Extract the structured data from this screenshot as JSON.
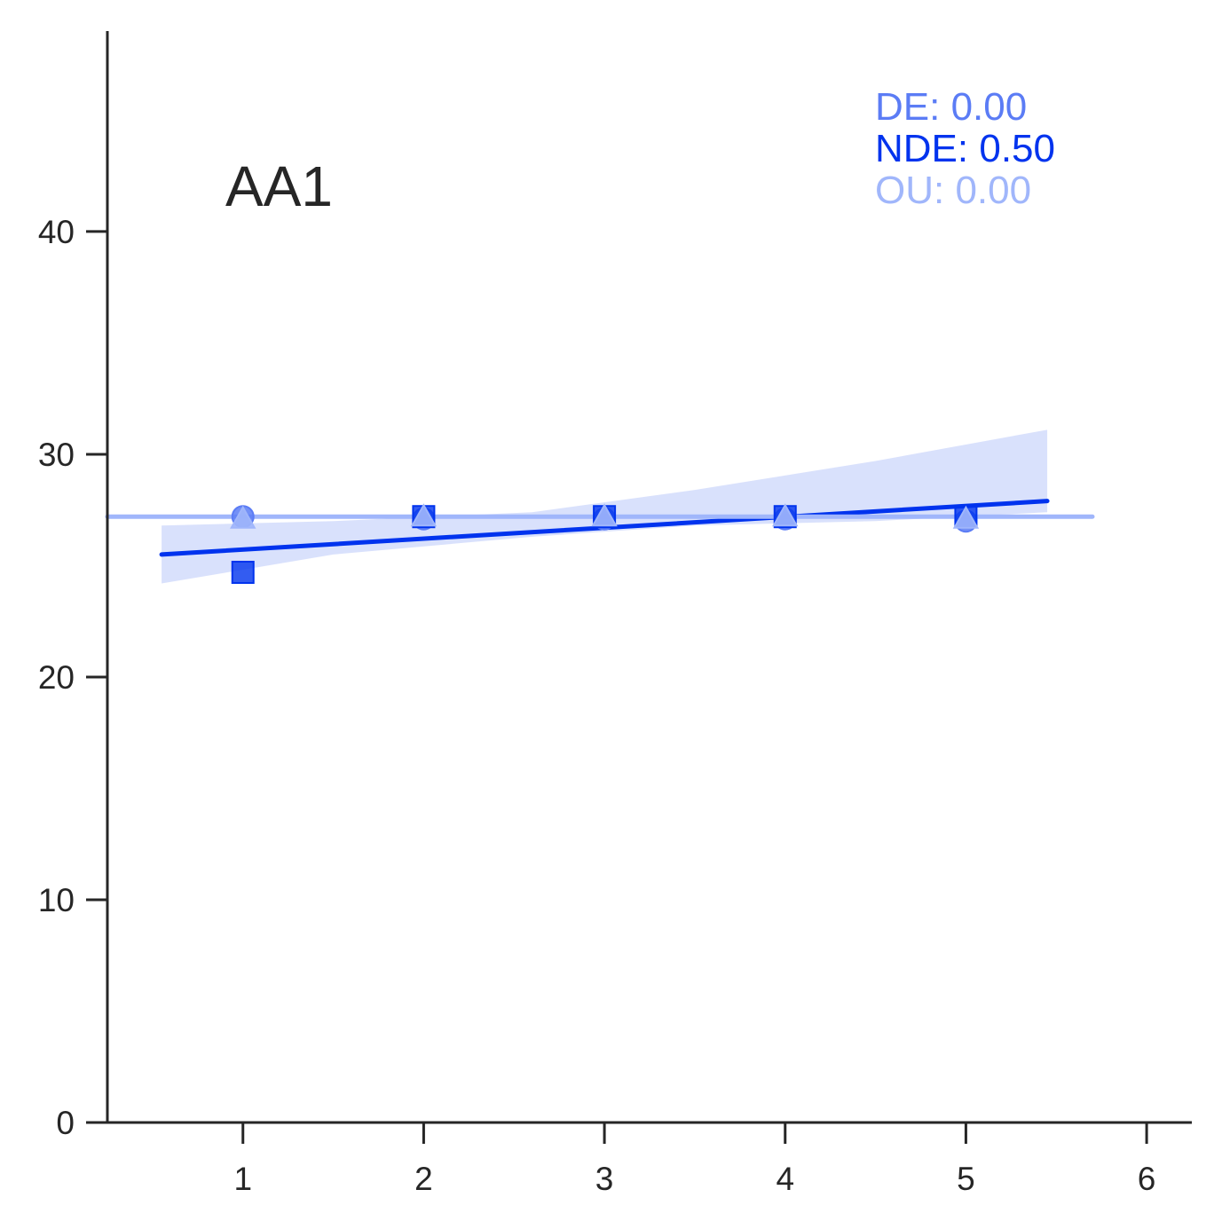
{
  "chart_data": {
    "type": "scatter",
    "title": "AA1",
    "xlabel": "",
    "ylabel": "",
    "xlim": [
      0.25,
      6.25
    ],
    "ylim": [
      0,
      49
    ],
    "x_ticks": [
      1,
      2,
      3,
      4,
      5,
      6
    ],
    "y_ticks": [
      0,
      10,
      20,
      30,
      40
    ],
    "grid": false,
    "colors": {
      "axis": "#262626",
      "DE": "#5b7cf5",
      "NDE": "#0033ee",
      "OU": "#a0b6fb"
    },
    "annotations": [
      {
        "key": "DE",
        "text": "DE: 0.00",
        "color": "#5b7cf5"
      },
      {
        "key": "NDE",
        "text": "NDE: 0.50",
        "color": "#0033ee"
      },
      {
        "key": "OU",
        "text": "OU: 0.00",
        "color": "#a0b6fb"
      }
    ],
    "series": [
      {
        "name": "DE",
        "marker": "circle",
        "color": "#5b7cf5",
        "points": [
          [
            1,
            27.2
          ],
          [
            2,
            27.1
          ],
          [
            3,
            27.1
          ],
          [
            4,
            27.1
          ],
          [
            5,
            27.0
          ]
        ]
      },
      {
        "name": "NDE",
        "marker": "square",
        "color": "#0033ee",
        "points": [
          [
            1,
            24.7
          ],
          [
            2,
            27.2
          ],
          [
            3,
            27.2
          ],
          [
            4,
            27.2
          ],
          [
            5,
            27.2
          ]
        ],
        "fit": {
          "x": [
            0.55,
            5.45
          ],
          "y": [
            25.5,
            27.9
          ]
        },
        "ci": {
          "x": [
            0.55,
            1.5,
            2.6,
            3.5,
            4.5,
            5.45
          ],
          "lower": [
            24.2,
            25.5,
            26.3,
            26.8,
            27.0,
            27.4
          ],
          "upper": [
            26.8,
            27.0,
            27.4,
            28.4,
            29.7,
            31.1
          ]
        }
      },
      {
        "name": "OU",
        "marker": "triangle",
        "color": "#a0b6fb",
        "points": [
          [
            1,
            27.1
          ],
          [
            2,
            27.2
          ],
          [
            3,
            27.2
          ],
          [
            4,
            27.2
          ],
          [
            5,
            27.1
          ]
        ],
        "fit": {
          "x": [
            0.25,
            5.7
          ],
          "y": [
            27.2,
            27.2
          ]
        }
      }
    ]
  }
}
